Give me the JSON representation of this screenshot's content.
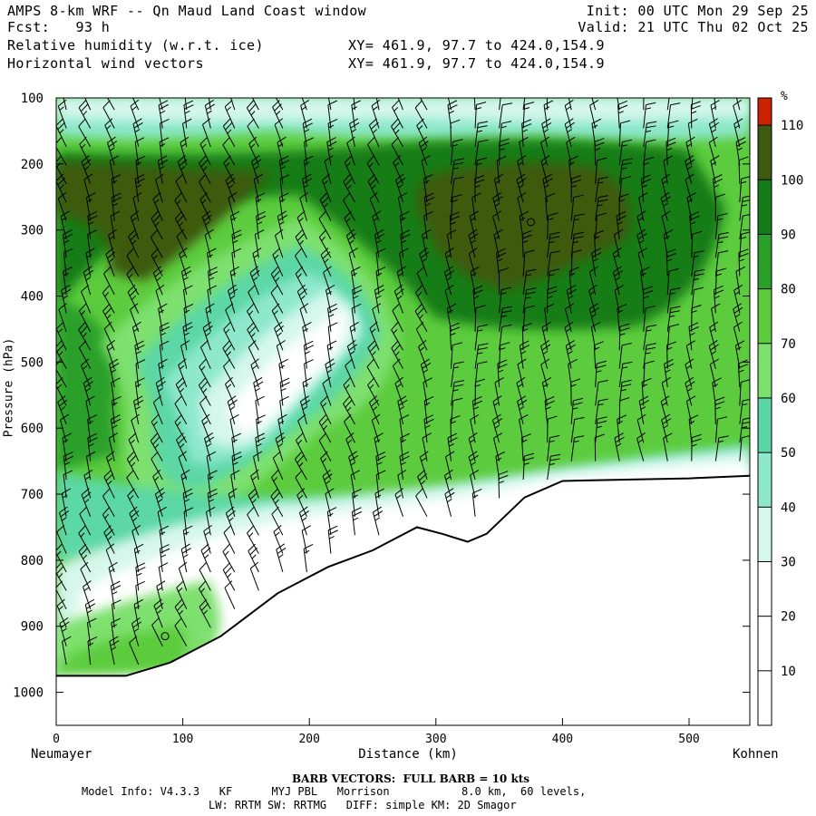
{
  "header": {
    "title": "AMPS 8-km WRF -- Qn Maud Land Coast window",
    "forecast": "Fcst:   93 h",
    "field_1": "Relative humidity (w.r.t. ice)",
    "field_2": "Horizontal wind vectors",
    "xy_1": "XY= 461.9, 97.7 to 424.0,154.9",
    "xy_2": "XY= 461.9, 97.7 to 424.0,154.9",
    "init": "Init: 00 UTC Mon 29 Sep 25",
    "valid": "Valid: 21 UTC Thu 02 Oct 25"
  },
  "footer": {
    "barb_note": "BARB VECTORS:  FULL BARB = 10 kts",
    "model_info_1": "Model Info: V4.3.3   KF      MYJ PBL   Morrison           8.0 km,  60 levels,",
    "model_info_2": "LW: RRTM SW: RRTMG   DIFF: simple KM: 2D Smagor"
  },
  "colors": {
    "terrain_line": "#000000",
    "barb": "#000000"
  },
  "chart_data": {
    "type": "cross-section",
    "xlabel": "Distance (km)",
    "ylabel": "Pressure (hPa)",
    "x_left_label": "Neumayer",
    "x_right_label": "Kohnen",
    "xlim": [
      0,
      548
    ],
    "ylim": [
      1050,
      100
    ],
    "x_ticks": [
      0,
      100,
      200,
      300,
      400,
      500
    ],
    "y_ticks": [
      100,
      200,
      300,
      400,
      500,
      600,
      700,
      800,
      900,
      1000
    ],
    "colorbar": {
      "unit": "%",
      "levels": [
        10,
        20,
        30,
        40,
        50,
        60,
        70,
        80,
        90,
        100,
        110
      ],
      "level_labels": [
        "10",
        "20",
        "30",
        "40",
        "50",
        "60",
        "70",
        "80",
        "90",
        "100",
        "110"
      ],
      "colors": [
        "#ffffff",
        "#ffffff",
        "#ffffff",
        "#d6f7ec",
        "#8ee8cc",
        "#5bd7a6",
        "#7ee06e",
        "#5ccc3e",
        "#2aa02a",
        "#137b18",
        "#3d5a10",
        "#cc2200"
      ]
    },
    "terrain_surface": {
      "x": [
        0,
        55,
        90,
        130,
        175,
        215,
        250,
        285,
        305,
        325,
        340,
        370,
        400,
        450,
        500,
        548
      ],
      "p": [
        975,
        975,
        955,
        915,
        850,
        810,
        785,
        750,
        760,
        772,
        760,
        705,
        680,
        678,
        676,
        672
      ]
    },
    "markers": [
      {
        "x": 86,
        "p": 915
      },
      {
        "x": 375,
        "p": 288
      }
    ]
  }
}
